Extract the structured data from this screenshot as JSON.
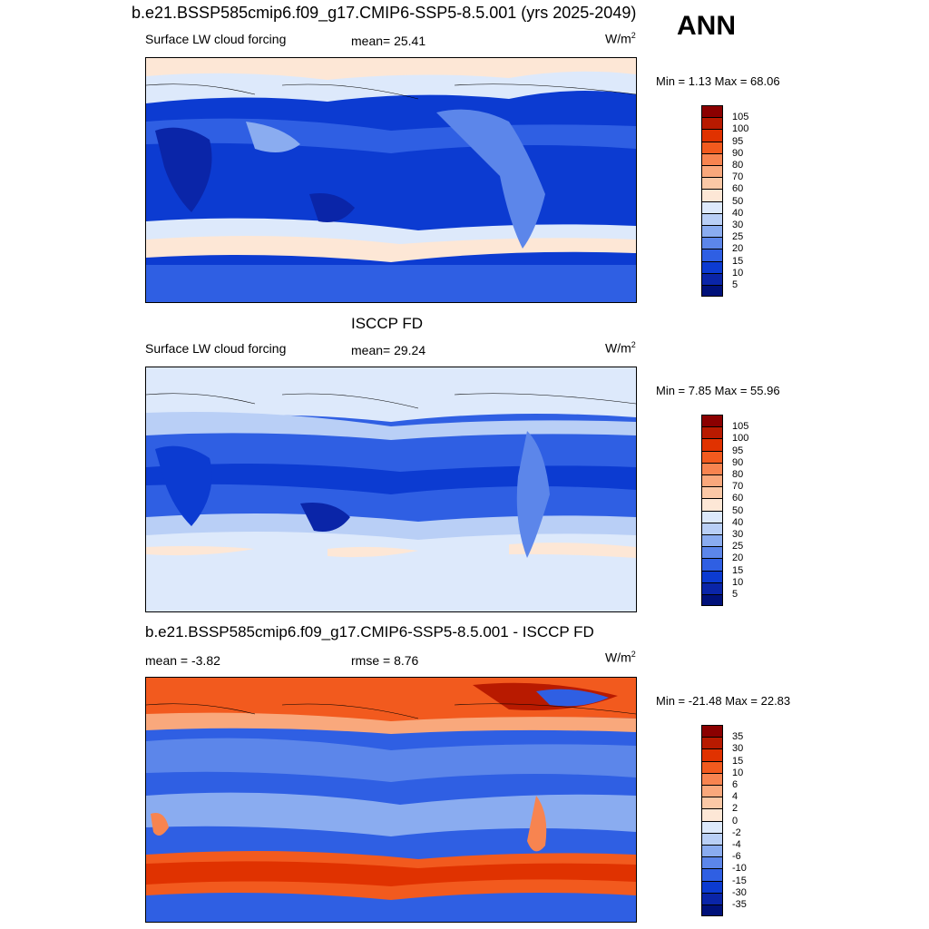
{
  "figure": {
    "title": "b.e21.BSSP585cmip6.f09_g17.CMIP6-SSP5-8.5.001 (yrs 2025-2049)",
    "season": "ANN"
  },
  "panels": [
    {
      "id": "model",
      "title": "",
      "left_label": "Surface LW cloud forcing",
      "center_label": "mean=  25.41",
      "unit": "W/m",
      "unit_sup": "2",
      "minmax": "Min =   1.13 Max =  68.06",
      "colorbar": {
        "labels": [
          "105",
          "100",
          "95",
          "90",
          "80",
          "70",
          "60",
          "50",
          "40",
          "30",
          "25",
          "20",
          "15",
          "10",
          "5"
        ],
        "colors": [
          "#8b0000",
          "#b81a00",
          "#e03200",
          "#f25a1e",
          "#f78450",
          "#f9a87c",
          "#fbc8a6",
          "#fde7d6",
          "#dde9fb",
          "#b9cff6",
          "#8aacf0",
          "#5c86ea",
          "#2f5fe3",
          "#0c3bd1",
          "#0a25a8",
          "#00117a"
        ]
      }
    },
    {
      "id": "obs",
      "title": "ISCCP FD",
      "left_label": "Surface LW cloud forcing",
      "center_label": "mean=  29.24",
      "unit": "W/m",
      "unit_sup": "2",
      "minmax": "Min =   7.85 Max =  55.96",
      "colorbar": {
        "labels": [
          "105",
          "100",
          "95",
          "90",
          "80",
          "70",
          "60",
          "50",
          "40",
          "30",
          "25",
          "20",
          "15",
          "10",
          "5"
        ],
        "colors": [
          "#8b0000",
          "#b81a00",
          "#e03200",
          "#f25a1e",
          "#f78450",
          "#f9a87c",
          "#fbc8a6",
          "#fde7d6",
          "#dde9fb",
          "#b9cff6",
          "#8aacf0",
          "#5c86ea",
          "#2f5fe3",
          "#0c3bd1",
          "#0a25a8",
          "#00117a"
        ]
      }
    },
    {
      "id": "diff",
      "title": "b.e21.BSSP585cmip6.f09_g17.CMIP6-SSP5-8.5.001 - ISCCP FD",
      "left_label": "mean =  -3.82",
      "center_label": "rmse =   8.76",
      "unit": "W/m",
      "unit_sup": "2",
      "minmax": "Min = -21.48 Max =  22.83",
      "colorbar": {
        "labels": [
          "35",
          "30",
          "15",
          "10",
          "6",
          "4",
          "2",
          "0",
          "-2",
          "-4",
          "-6",
          "-10",
          "-15",
          "-30",
          "-35"
        ],
        "colors": [
          "#8b0000",
          "#b81a00",
          "#e03200",
          "#f25a1e",
          "#f78450",
          "#f9a87c",
          "#fbc8a6",
          "#fde7d6",
          "#dde9fb",
          "#b9cff6",
          "#8aacf0",
          "#5c86ea",
          "#2f5fe3",
          "#0c3bd1",
          "#0a25a8",
          "#00117a"
        ]
      }
    }
  ]
}
